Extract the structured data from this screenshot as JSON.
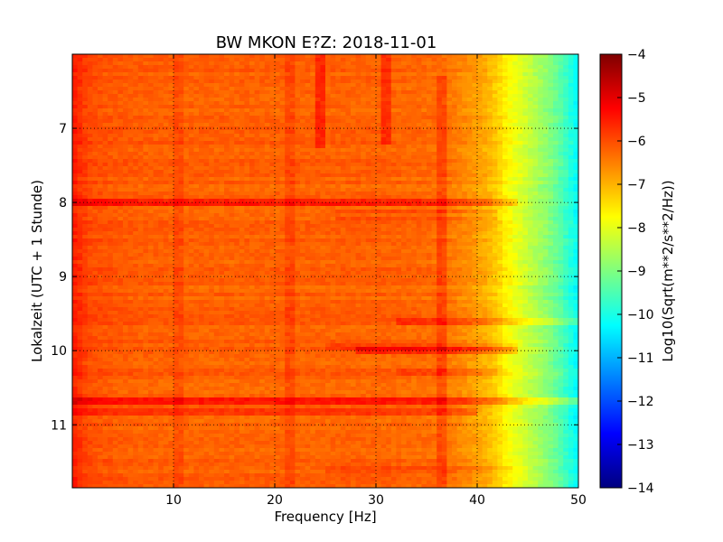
{
  "chart_data": {
    "type": "heatmap",
    "title": "BW MKON E?Z: 2018-11-01",
    "xlabel": "Frequency [Hz]",
    "ylabel": "Lokalzeit (UTC + 1 Stunde)",
    "xlim": [
      0,
      50
    ],
    "ylim": [
      11.85,
      6.0
    ],
    "xticks": [
      10,
      20,
      30,
      40,
      50
    ],
    "yticks": [
      7,
      8,
      9,
      10,
      11
    ],
    "grid": true,
    "colorbar": {
      "label": "Log10(Sqrt(m**2/s**2/Hz))",
      "range": [
        -14,
        -4
      ],
      "ticks": [
        -4,
        -5,
        -6,
        -7,
        -8,
        -9,
        -10,
        -11,
        -12,
        -13,
        -14
      ],
      "colormap": [
        "#00007f",
        "#0000ff",
        "#007fff",
        "#00ffff",
        "#7fff7f",
        "#ffff00",
        "#ff7f00",
        "#ff0000",
        "#7f0000"
      ]
    },
    "frequency_profile": {
      "frequency_hz": [
        0,
        1,
        2,
        4,
        6,
        10,
        20,
        30,
        36,
        38,
        40,
        41,
        42,
        43,
        44,
        45,
        46,
        47,
        48,
        49,
        50
      ],
      "log10_amplitude": [
        -5.5,
        -5.8,
        -6.0,
        -6.1,
        -6.15,
        -6.2,
        -6.2,
        -6.2,
        -6.3,
        -6.5,
        -6.8,
        -7.0,
        -7.3,
        -7.7,
        -8.0,
        -8.3,
        -8.6,
        -8.9,
        -9.3,
        -9.8,
        -10.3
      ]
    },
    "horizontal_features": [
      {
        "time": 8.0,
        "delta": 0.7,
        "from_hz": 0,
        "to_hz": 44
      },
      {
        "time": 10.67,
        "delta": 0.8,
        "from_hz": 0,
        "to_hz": 50
      },
      {
        "time": 10.0,
        "delta": 0.6,
        "from_hz": 28,
        "to_hz": 44
      },
      {
        "time": 9.62,
        "delta": 0.45,
        "from_hz": 32,
        "to_hz": 50
      },
      {
        "time": 10.82,
        "delta": 0.5,
        "from_hz": 0,
        "to_hz": 40
      },
      {
        "time": 8.12,
        "delta": 0.35,
        "from_hz": 26,
        "to_hz": 42
      },
      {
        "time": 8.22,
        "delta": 0.3,
        "from_hz": 26,
        "to_hz": 42
      },
      {
        "time": 9.95,
        "delta": 0.35,
        "from_hz": 25,
        "to_hz": 44
      },
      {
        "time": 10.28,
        "delta": 0.3,
        "from_hz": 32,
        "to_hz": 42
      },
      {
        "time": 11.6,
        "delta": 0.3,
        "from_hz": 25,
        "to_hz": 45
      }
    ],
    "vertical_features": [
      {
        "freq_hz": 24.6,
        "delta": 0.55,
        "from_time": 6.0,
        "to_time": 7.25
      },
      {
        "freq_hz": 31.0,
        "delta": 0.5,
        "from_time": 6.0,
        "to_time": 7.2
      },
      {
        "freq_hz": 36.6,
        "delta": 0.4,
        "from_time": 6.3,
        "to_time": 11.85
      },
      {
        "freq_hz": 10.5,
        "delta": 0.2,
        "from_time": 6.0,
        "to_time": 11.85
      },
      {
        "freq_hz": 21.5,
        "delta": 0.25,
        "from_time": 6.0,
        "to_time": 11.85
      }
    ]
  }
}
